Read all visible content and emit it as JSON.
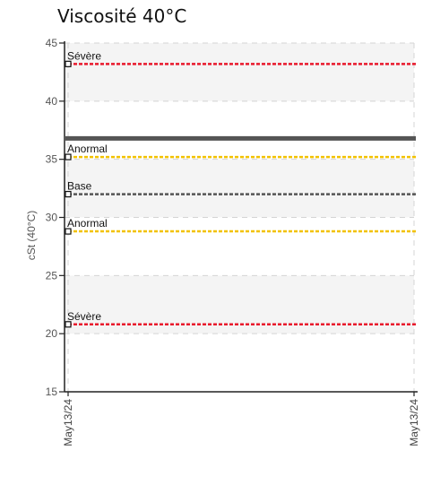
{
  "chart_data": {
    "type": "line",
    "title": "Viscosité 40°C",
    "ylabel": "cSt (40°C)",
    "ylim": [
      15,
      45
    ],
    "yticks": [
      15,
      20,
      25,
      30,
      35,
      40,
      45
    ],
    "x_ticks": [
      "May13/24",
      "May13/24"
    ],
    "grid": true,
    "series": [
      {
        "name": "",
        "y": 36.8,
        "color": "#555555"
      }
    ],
    "reference_lines": [
      {
        "label": "Sévère",
        "y": 43.2,
        "color": "#e8192c"
      },
      {
        "label": "Anormal",
        "y": 35.2,
        "color": "#f2c200"
      },
      {
        "label": "Base",
        "y": 32.0,
        "color": "#555555"
      },
      {
        "label": "Anormal",
        "y": 28.8,
        "color": "#f2c200"
      },
      {
        "label": "Sévère",
        "y": 20.8,
        "color": "#e8192c"
      }
    ],
    "colors": {
      "band": "#f4f4f4",
      "grid": "#d4d4d4",
      "axis": "#222222"
    }
  }
}
